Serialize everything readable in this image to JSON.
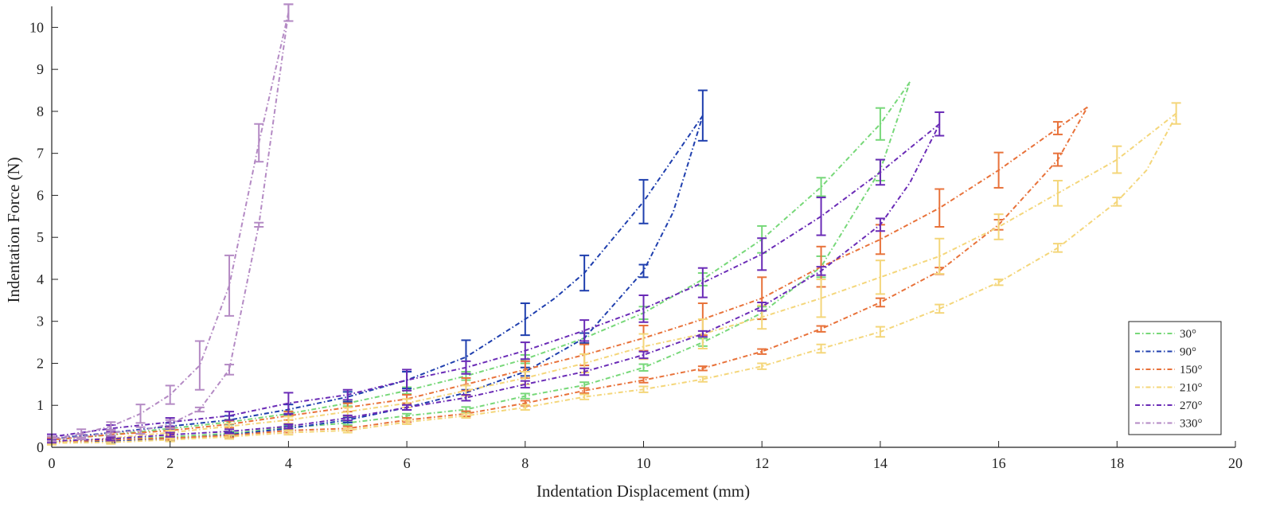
{
  "chart_data": {
    "type": "line",
    "title": "",
    "xlabel": "Indentation Displacement (mm)",
    "ylabel": "Indentation Force (N)",
    "xlim": [
      0,
      20
    ],
    "ylim": [
      0,
      10.5
    ],
    "xticks": [
      0,
      2,
      4,
      6,
      8,
      10,
      12,
      14,
      16,
      18,
      20
    ],
    "yticks": [
      0,
      1,
      2,
      3,
      4,
      5,
      6,
      7,
      8,
      9,
      10
    ],
    "xtick_labels": [
      "0",
      "2",
      "4",
      "6",
      "8",
      "10",
      "12",
      "14",
      "16",
      "18",
      "20"
    ],
    "ytick_labels": [
      "0",
      "1",
      "2",
      "3",
      "4",
      "5",
      "6",
      "7",
      "8",
      "9",
      "10"
    ],
    "legend_position": "bottom-right",
    "series": [
      {
        "name": "30°",
        "color": "#77d879",
        "loading": {
          "x": [
            0,
            1,
            2,
            3,
            4,
            5,
            6,
            7,
            8,
            9,
            10,
            11,
            12,
            13,
            14,
            14.5
          ],
          "y": [
            0.12,
            0.18,
            0.25,
            0.33,
            0.47,
            0.58,
            0.75,
            0.9,
            1.22,
            1.48,
            1.9,
            2.5,
            3.2,
            4.3,
            6.6,
            8.7
          ],
          "err": [
            0.04,
            0.04,
            0.05,
            0.05,
            0.05,
            0.05,
            0.05,
            0.06,
            0.06,
            0.07,
            0.08,
            0.09,
            0.15,
            0.25,
            0.25,
            0
          ]
        },
        "unloading": {
          "x": [
            14.5,
            14,
            13,
            12,
            11,
            10,
            9,
            8,
            7,
            6,
            5,
            4,
            3,
            2,
            1,
            0
          ],
          "y": [
            8.7,
            7.7,
            6.2,
            4.95,
            4.0,
            3.2,
            2.6,
            2.1,
            1.7,
            1.35,
            1.05,
            0.8,
            0.6,
            0.45,
            0.3,
            0.18
          ],
          "err": [
            0,
            0.38,
            0.22,
            0.32,
            0.15,
            0.15,
            0.12,
            0.1,
            0.1,
            0.08,
            0.07,
            0.06,
            0.06,
            0.05,
            0.05,
            0.04
          ]
        }
      },
      {
        "name": "90°",
        "color": "#1f3fae",
        "loading": {
          "x": [
            0,
            1,
            2,
            3,
            4,
            5,
            6,
            7,
            8,
            9,
            10,
            10.5,
            11
          ],
          "y": [
            0.12,
            0.15,
            0.2,
            0.3,
            0.45,
            0.65,
            0.95,
            1.3,
            1.8,
            2.6,
            4.2,
            5.6,
            7.9
          ],
          "err": [
            0.04,
            0.04,
            0.05,
            0.05,
            0.05,
            0.06,
            0.06,
            0.07,
            0.1,
            0.12,
            0.15,
            0,
            0
          ]
        },
        "unloading": {
          "x": [
            11,
            10,
            9,
            8.5,
            8,
            7,
            6,
            5,
            4,
            3,
            2,
            1,
            0
          ],
          "y": [
            7.9,
            5.85,
            4.15,
            3.55,
            3.05,
            2.15,
            1.6,
            1.2,
            0.9,
            0.65,
            0.5,
            0.35,
            0.2
          ],
          "err": [
            0.6,
            0.52,
            0.42,
            0,
            0.38,
            0.4,
            0.2,
            0.12,
            0.12,
            0.1,
            0.08,
            0.07,
            0.05
          ]
        }
      },
      {
        "name": "150°",
        "color": "#e8723a",
        "loading": {
          "x": [
            0,
            1,
            2,
            3,
            4,
            5,
            6,
            7,
            8,
            9,
            10,
            11,
            12,
            13,
            14,
            15,
            16,
            17,
            17.5
          ],
          "y": [
            0.12,
            0.18,
            0.22,
            0.28,
            0.4,
            0.45,
            0.65,
            0.8,
            1.05,
            1.35,
            1.6,
            1.88,
            2.28,
            2.82,
            3.45,
            4.2,
            5.3,
            6.85,
            8.1
          ],
          "err": [
            0.04,
            0.04,
            0.04,
            0.04,
            0.05,
            0.05,
            0.05,
            0.06,
            0.06,
            0.06,
            0.06,
            0.05,
            0.06,
            0.07,
            0.1,
            0.08,
            0.12,
            0.15,
            0
          ]
        },
        "unloading": {
          "x": [
            17.5,
            17,
            16,
            15,
            14,
            13,
            12,
            11,
            10,
            9,
            8,
            7,
            6,
            5,
            4,
            3,
            2,
            1,
            0
          ],
          "y": [
            8.1,
            7.6,
            6.6,
            5.7,
            4.95,
            4.3,
            3.55,
            3.05,
            2.6,
            2.2,
            1.85,
            1.5,
            1.15,
            0.95,
            0.75,
            0.55,
            0.4,
            0.3,
            0.18
          ],
          "err": [
            0,
            0.15,
            0.42,
            0.45,
            0.35,
            0.48,
            0.5,
            0.38,
            0.3,
            0.25,
            0.2,
            0.15,
            0.1,
            0.1,
            0.1,
            0.08,
            0.06,
            0.05,
            0.04
          ]
        }
      },
      {
        "name": "210°",
        "color": "#f4d67a",
        "loading": {
          "x": [
            0,
            1,
            2,
            3,
            4,
            5,
            6,
            7,
            8,
            9,
            10,
            11,
            12,
            13,
            14,
            15,
            16,
            17,
            18,
            18.5,
            19
          ],
          "y": [
            0.1,
            0.12,
            0.18,
            0.25,
            0.35,
            0.4,
            0.6,
            0.75,
            0.95,
            1.2,
            1.38,
            1.62,
            1.93,
            2.35,
            2.75,
            3.3,
            3.93,
            4.75,
            5.85,
            6.6,
            7.9
          ],
          "err": [
            0.04,
            0.04,
            0.04,
            0.05,
            0.05,
            0.05,
            0.05,
            0.05,
            0.06,
            0.06,
            0.07,
            0.06,
            0.07,
            0.1,
            0.12,
            0.1,
            0.07,
            0.1,
            0.1,
            0,
            0
          ]
        },
        "unloading": {
          "x": [
            19,
            18,
            17,
            16,
            15,
            14,
            13,
            12,
            11,
            10,
            9,
            8,
            7,
            6,
            5,
            4,
            3,
            2,
            1,
            0
          ],
          "y": [
            7.95,
            6.85,
            6.05,
            5.25,
            4.55,
            4.05,
            3.55,
            3.1,
            2.7,
            2.4,
            2.0,
            1.65,
            1.35,
            1.05,
            0.85,
            0.65,
            0.5,
            0.35,
            0.22,
            0.12
          ],
          "err": [
            0.25,
            0.32,
            0.3,
            0.3,
            0.42,
            0.4,
            0.45,
            0.28,
            0.35,
            0.3,
            0.22,
            0.15,
            0.12,
            0.1,
            0.1,
            0.08,
            0.06,
            0.05,
            0.05,
            0.04
          ]
        }
      },
      {
        "name": "270°",
        "color": "#6a2bb6",
        "loading": {
          "x": [
            0,
            1,
            2,
            3,
            4,
            5,
            6,
            7,
            8,
            9,
            10,
            11,
            12,
            13,
            14,
            14.5,
            15
          ],
          "y": [
            0.15,
            0.2,
            0.3,
            0.38,
            0.5,
            0.7,
            0.95,
            1.18,
            1.5,
            1.8,
            2.2,
            2.7,
            3.35,
            4.2,
            5.3,
            6.3,
            7.7
          ],
          "err": [
            0.04,
            0.04,
            0.05,
            0.05,
            0.05,
            0.06,
            0.06,
            0.07,
            0.08,
            0.08,
            0.08,
            0.07,
            0.1,
            0.1,
            0.15,
            0,
            0
          ]
        },
        "unloading": {
          "x": [
            15,
            14,
            13,
            12,
            11,
            10,
            9,
            8,
            7,
            6.5,
            6,
            5,
            4,
            3,
            2,
            1,
            0
          ],
          "y": [
            7.7,
            6.55,
            5.5,
            4.6,
            3.92,
            3.3,
            2.78,
            2.3,
            1.9,
            1.75,
            1.6,
            1.25,
            1.05,
            0.75,
            0.6,
            0.45,
            0.25
          ],
          "err": [
            0.28,
            0.3,
            0.45,
            0.38,
            0.35,
            0.32,
            0.25,
            0.2,
            0.15,
            0,
            0.25,
            0.12,
            0.25,
            0.1,
            0.1,
            0.08,
            0.06
          ]
        }
      },
      {
        "name": "330°",
        "color": "#b48ac4",
        "loading": {
          "x": [
            0,
            0.5,
            1,
            1.5,
            2,
            2.5,
            3,
            3.5,
            4
          ],
          "y": [
            0.2,
            0.25,
            0.35,
            0.4,
            0.55,
            0.9,
            1.85,
            5.3,
            10.35
          ],
          "err": [
            0.05,
            0.06,
            0.07,
            0.08,
            0.1,
            0.05,
            0.12,
            0.05,
            0.2
          ]
        },
        "unloading": {
          "x": [
            4,
            3.5,
            3,
            2.5,
            2,
            1.5,
            1,
            0.5,
            0
          ],
          "y": [
            10.35,
            7.25,
            3.85,
            1.95,
            1.25,
            0.8,
            0.5,
            0.33,
            0.2
          ],
          "err": [
            0.2,
            0.45,
            0.72,
            0.58,
            0.22,
            0.22,
            0.1,
            0.1,
            0.06
          ]
        }
      }
    ]
  }
}
